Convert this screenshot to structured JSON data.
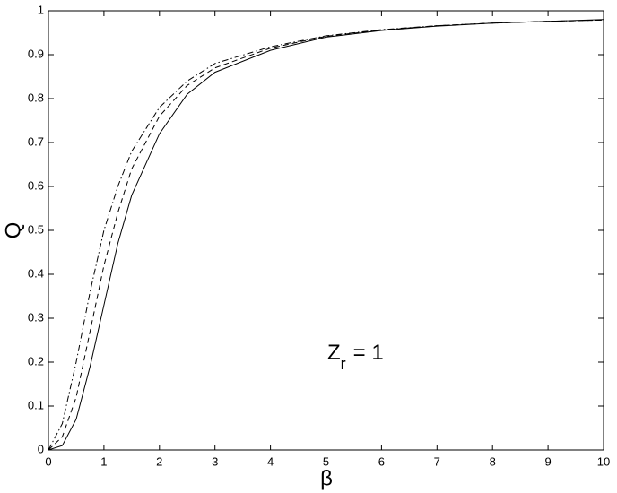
{
  "chart_data": {
    "type": "line",
    "xlabel": "β",
    "ylabel": "Q",
    "annotation": {
      "base": "Z",
      "subscript": "r",
      "suffix": "= 1"
    },
    "x": [
      0,
      0.25,
      0.5,
      0.75,
      1,
      1.25,
      1.5,
      2,
      2.5,
      3,
      4,
      5,
      6,
      7,
      8,
      9,
      10
    ],
    "series": [
      {
        "color": "#000000",
        "dash": "solid",
        "values": [
          0,
          0.01,
          0.07,
          0.19,
          0.33,
          0.47,
          0.58,
          0.72,
          0.81,
          0.86,
          0.91,
          0.94,
          0.955,
          0.965,
          0.972,
          0.976,
          0.98
        ]
      },
      {
        "color": "#000000",
        "dash": "dashed",
        "values": [
          0,
          0.03,
          0.12,
          0.27,
          0.42,
          0.54,
          0.64,
          0.76,
          0.83,
          0.87,
          0.915,
          0.942,
          0.956,
          0.966,
          0.972,
          0.976,
          0.979
        ]
      },
      {
        "color": "#000000",
        "dash": "dashdot",
        "values": [
          0,
          0.06,
          0.2,
          0.36,
          0.5,
          0.6,
          0.68,
          0.78,
          0.84,
          0.88,
          0.918,
          0.943,
          0.957,
          0.966,
          0.972,
          0.976,
          0.979
        ]
      }
    ],
    "xlim": [
      0,
      10
    ],
    "xticks": [
      0,
      1,
      2,
      3,
      4,
      5,
      6,
      7,
      8,
      9,
      10
    ],
    "ylim": [
      0,
      1
    ],
    "yticks": [
      0,
      0.1,
      0.2,
      0.3,
      0.4,
      0.5,
      0.6,
      0.7,
      0.8,
      0.9,
      1
    ],
    "grid": false
  }
}
